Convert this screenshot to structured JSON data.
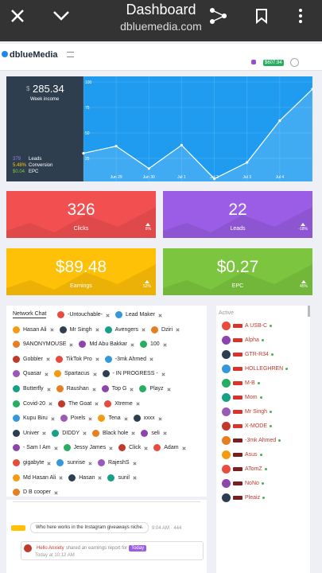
{
  "browser": {
    "title": "Dashboard",
    "url": "dbluemedia.com"
  },
  "header": {
    "logo": "dblueMedia",
    "balance": "$607.94"
  },
  "income": {
    "currency": "$",
    "amount": "285.34",
    "label": "Week income",
    "stats": [
      {
        "value": "379",
        "label": "Leads"
      },
      {
        "value": "5.48%",
        "label": "Conversion"
      },
      {
        "value": "$0.04",
        "label": "EPC"
      }
    ]
  },
  "chart_data": {
    "type": "line",
    "categories": [
      null,
      "Jun 29",
      "Jun 30",
      "Jul 1",
      "Jul 2",
      "Jul 3",
      "Jul 4",
      null
    ],
    "values": [
      30,
      37,
      15,
      38,
      5,
      21,
      62,
      93
    ],
    "color": "#ffffff",
    "ylim": [
      0,
      100
    ],
    "yticks": [
      25,
      50,
      75,
      100
    ],
    "grid": true
  },
  "cards": [
    {
      "value": "326",
      "label": "Clicks",
      "change": "6%",
      "color": "#f25050"
    },
    {
      "value": "22",
      "label": "Leads",
      "change": "-18%",
      "color": "#9b5de5"
    },
    {
      "value": "$89.48",
      "label": "Earnings",
      "change": "52%",
      "color": "#ffc107"
    },
    {
      "value": "$0.27",
      "label": "EPC",
      "change": "45%",
      "color": "#7cc63f"
    }
  ],
  "chat": {
    "title": "Network Chat",
    "rows": [
      [
        "-Untouchable-",
        "Lead Maker"
      ],
      [
        "Hasan Ali",
        "Mr Singh",
        "Avengers",
        "Dziri"
      ],
      [
        "9ANONYMOUSE",
        "Md Abu Bakkar",
        "100"
      ],
      [
        "Gobbler",
        "TikTok Pro",
        "-3mk Ahmed"
      ],
      [
        "Quasar",
        "Spartacus",
        "- IN PROGRESS -"
      ],
      [
        "Butterfly",
        "Raushan",
        "Top G",
        "Playz"
      ],
      [
        "Covid-20",
        "The Goat",
        "Xtreme"
      ],
      [
        "Kupu Biru",
        "Pixels",
        "Tena",
        "xxxx"
      ],
      [
        "Univer",
        "DIDDY",
        "Black hole",
        "seli"
      ],
      [
        "- Sam I Am",
        "Jessy James",
        "Click",
        "Adam"
      ],
      [
        "gigabyte",
        "sunrise",
        "RajeshS"
      ],
      [
        "Md Hasan Ali",
        "Hasan",
        "sunil"
      ],
      [
        "D B cooper"
      ]
    ],
    "messages": [
      {
        "text": "Who here works in the Instagram giveaways niche.",
        "time": "9:04 AM · 444"
      },
      {
        "name": "Hello Anxiety",
        "text": "shared an earnings report for",
        "badge": "Today",
        "time": "Today at 10:12 AM"
      }
    ]
  },
  "active": {
    "title": "Active",
    "users": [
      "A USB-C",
      "Alpha",
      "GTR-R34",
      "HOLLEGHREN",
      "M-B",
      "Mom",
      "Mr Singh",
      "X-MODE",
      "-3mk Ahmed",
      "Asus",
      "ATomZ",
      "NoNo",
      "Pleaiz"
    ]
  }
}
